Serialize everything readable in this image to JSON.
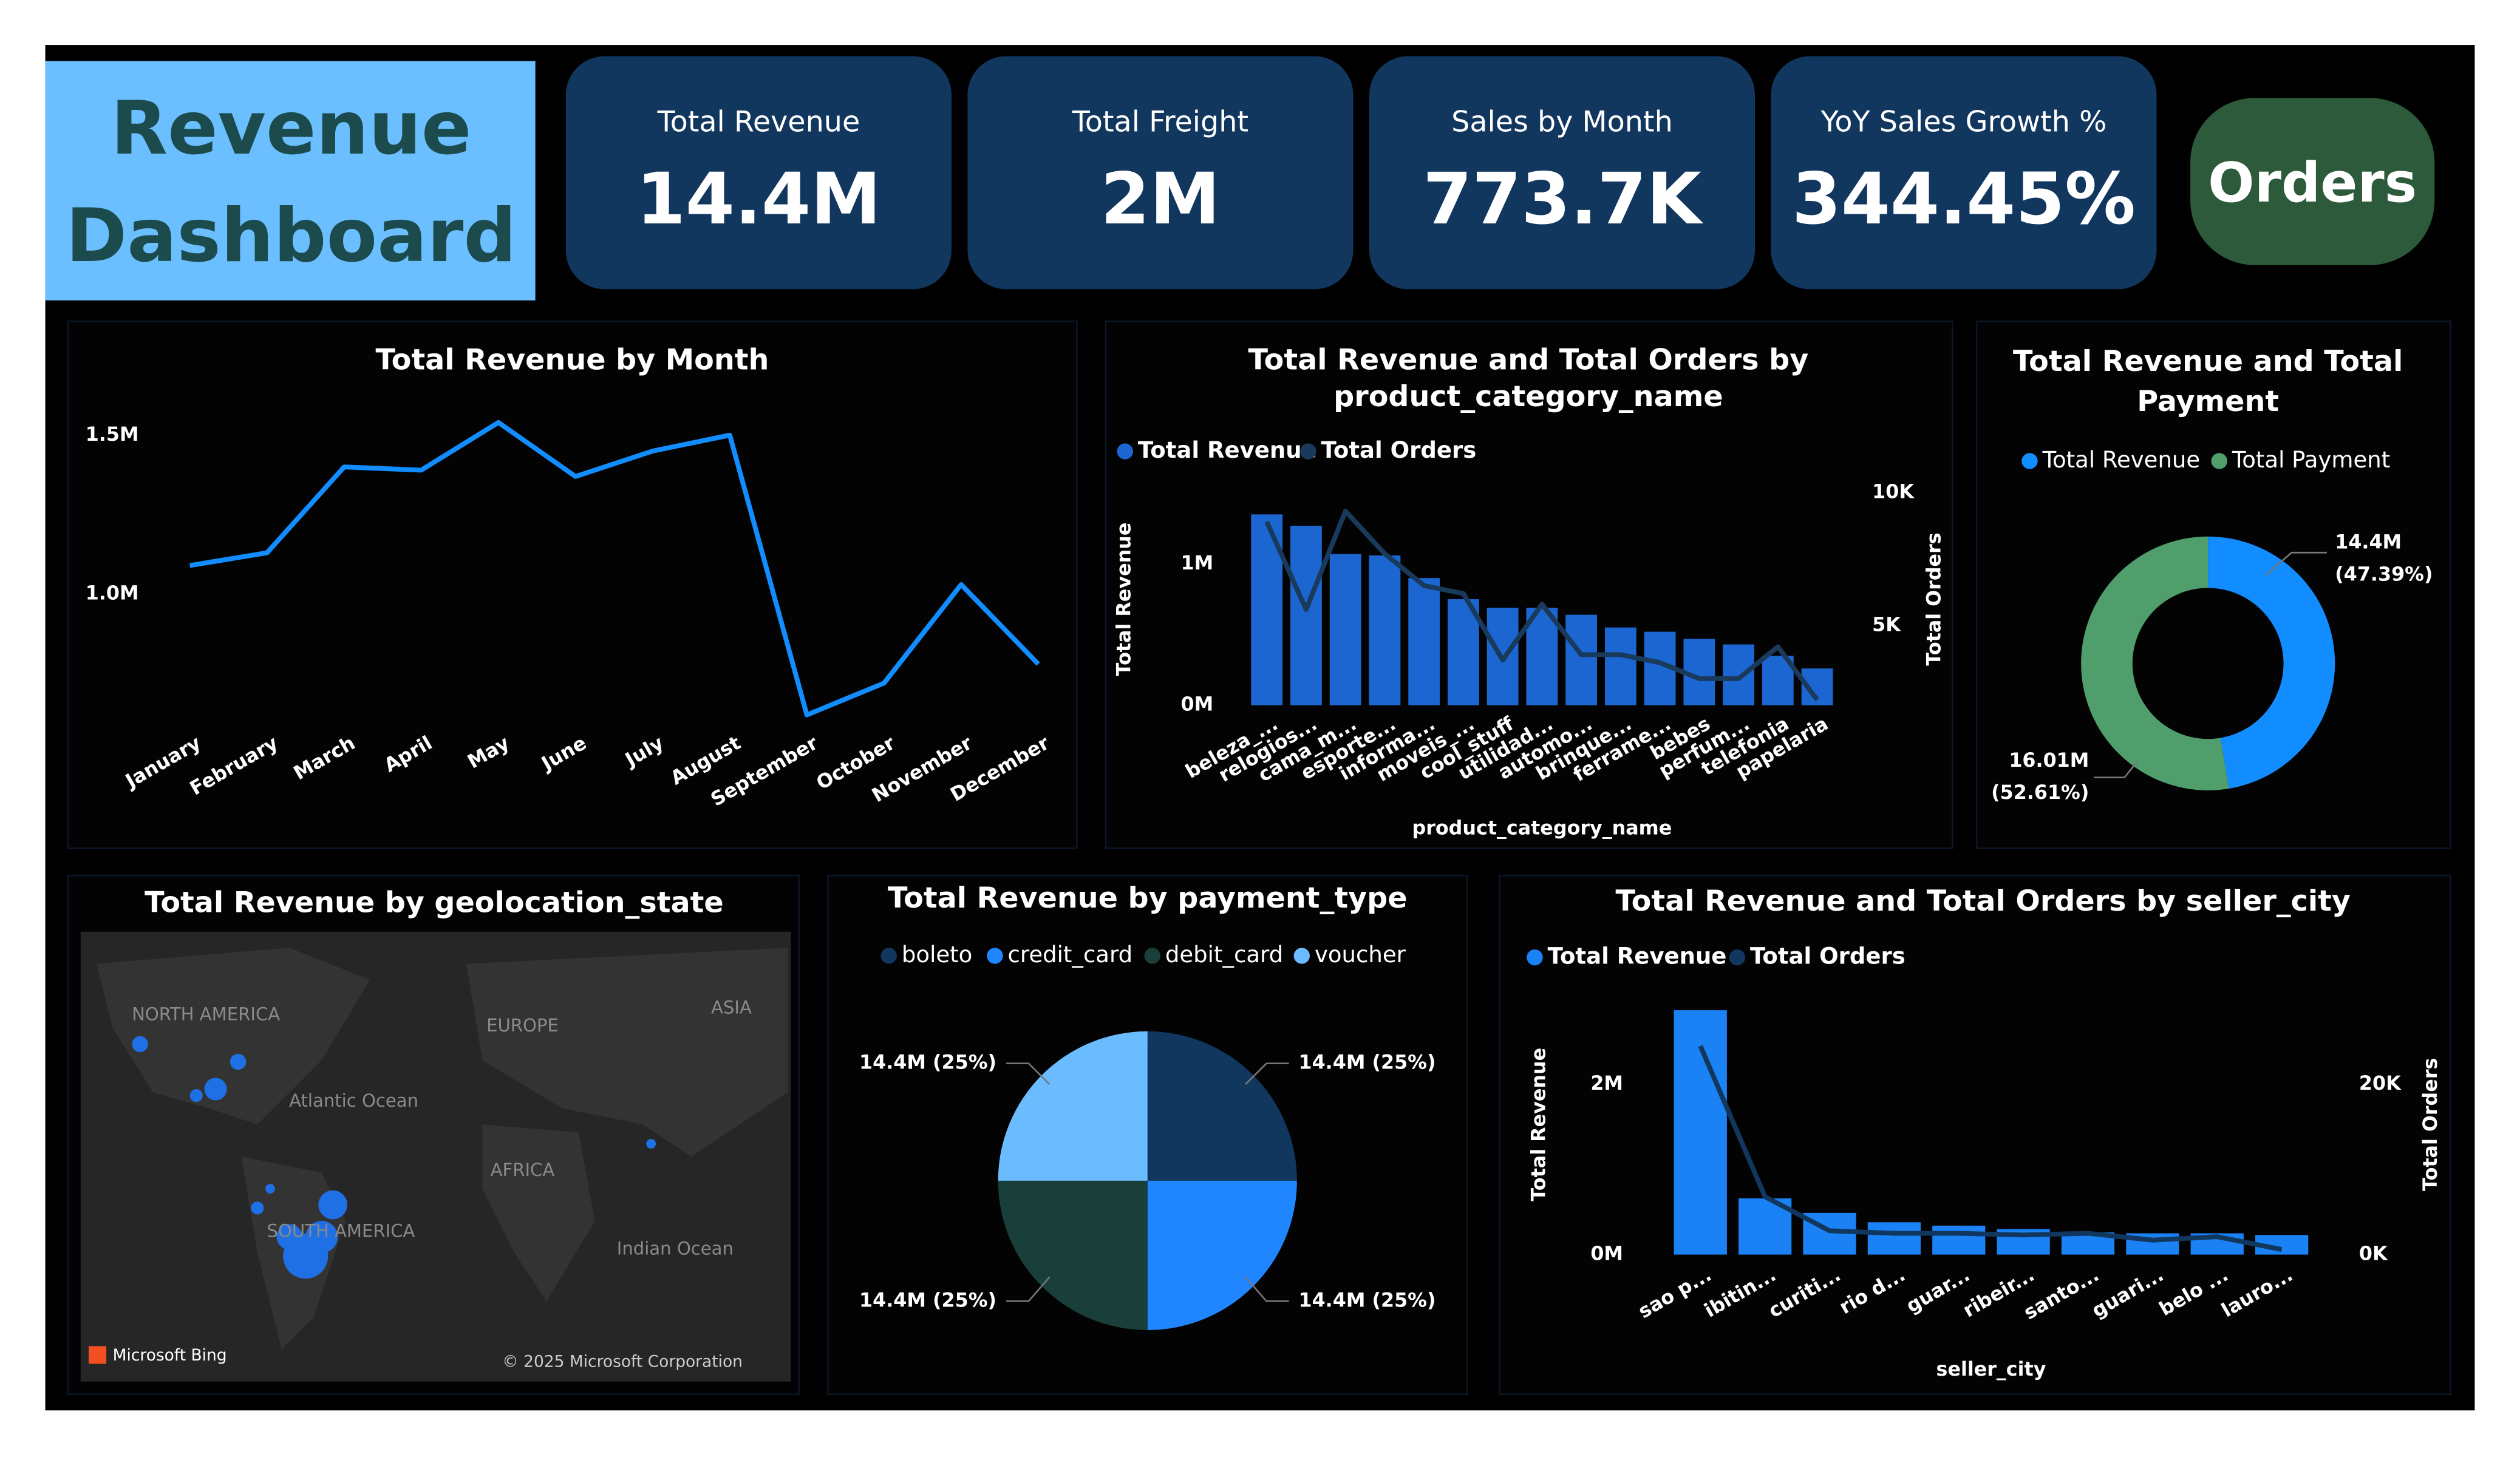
{
  "header": {
    "title": [
      "Revenue",
      "Dashboard"
    ]
  },
  "kpis": [
    {
      "label": "Total Revenue",
      "value": "14.4M"
    },
    {
      "label": "Total Freight",
      "value": "2M"
    },
    {
      "label": "Sales by Month",
      "value": "773.7K"
    },
    {
      "label": "YoY Sales Growth %",
      "value": "344.45%"
    }
  ],
  "button": "Orders",
  "map": {
    "title": "Total Revenue by geolocation_state",
    "labels": [
      "NORTH AMERICA",
      "EUROPE",
      "ASIA",
      "Atlantic Ocean",
      "AFRICA",
      "SOUTH AMERICA",
      "Indian Ocean",
      "Microsoft Bing",
      "© 2025 Microsoft Corporation"
    ]
  },
  "chart_data": [
    {
      "type": "line",
      "title": [
        "Total Revenue by Month"
      ],
      "categories": [
        "January",
        "February",
        "March",
        "April",
        "May",
        "June",
        "July",
        "August",
        "September",
        "October",
        "November",
        "December"
      ],
      "values": [
        1090000,
        1130000,
        1400000,
        1390000,
        1540000,
        1370000,
        1450000,
        1500000,
        620000,
        720000,
        1030000,
        780000
      ],
      "color": "#118dff",
      "ylim": [
        600000,
        1550000
      ],
      "yticks": [
        {
          "value": 1000000,
          "label": "1.0M"
        },
        {
          "value": 1500000,
          "label": "1.5M"
        }
      ],
      "grid": false
    },
    {
      "type": "bar_line",
      "title": [
        "Total Revenue and Total Orders by",
        "product_category_name"
      ],
      "categories": [
        "beleza_...",
        "relogios...",
        "cama_m...",
        "esporte...",
        "informa...",
        "moveis_...",
        "cool_stuff",
        "utilidad...",
        "automo...",
        "brinque...",
        "ferrame...",
        "bebes",
        "perfum...",
        "telefonia",
        "papelaria"
      ],
      "series": [
        {
          "name": "Total Revenue",
          "color": "#1b66d1",
          "values": [
            1350000,
            1270000,
            1070000,
            1060000,
            900000,
            750000,
            690000,
            690000,
            640000,
            550000,
            520000,
            470000,
            430000,
            350000,
            260000
          ]
        },
        {
          "name": "Total Orders",
          "color": "#1a3a5c",
          "axis": "y2",
          "values": [
            8900,
            5600,
            9300,
            7700,
            6500,
            6200,
            3700,
            5800,
            3900,
            3900,
            3600,
            3000,
            3000,
            4200,
            2200
          ]
        }
      ],
      "x_label": "product_category_name",
      "y_label": "Total Revenue",
      "y2_label": "Total Orders",
      "ylim": [
        0,
        1580000
      ],
      "yticks": [
        {
          "value": 0,
          "label": "0M"
        },
        {
          "value": 1000000,
          "label": "1M"
        }
      ],
      "y2lim": [
        2000,
        10400
      ],
      "y2ticks": [
        {
          "value": 5000,
          "label": "5K"
        },
        {
          "value": 10000,
          "label": "10K"
        }
      ]
    },
    {
      "type": "donut",
      "title": [
        "Total Revenue and Total",
        "Payment"
      ],
      "categories": [
        "Total Revenue",
        "Total Payment"
      ],
      "values": [
        14400000,
        16010000
      ],
      "value_labels": [
        "14.4M",
        "16.01M"
      ],
      "percents": [
        47.39,
        52.61
      ],
      "percent_labels": [
        "(47.39%)",
        "(52.61%)"
      ],
      "colors": [
        "#118dff",
        "#4f9e6b"
      ]
    },
    {
      "type": "pie",
      "title": [
        "Total Revenue by payment_type"
      ],
      "categories": [
        "boleto",
        "credit_card",
        "debit_card",
        "voucher"
      ],
      "values": [
        14400000,
        14400000,
        14400000,
        14400000
      ],
      "value_labels": [
        "14.4M (25%)",
        "14.4M (25%)",
        "14.4M (25%)",
        "14.4M (25%)"
      ],
      "colors": [
        "#12375f",
        "#1f86ff",
        "#1a3f3a",
        "#6bbcff"
      ]
    },
    {
      "type": "bar_line",
      "title": [
        "Total Revenue and Total Orders by seller_city"
      ],
      "categories": [
        "sao p...",
        "ibitin...",
        "curiti...",
        "rio d...",
        "guar...",
        "ribeir...",
        "santo...",
        "guari...",
        "belo ...",
        "lauro..."
      ],
      "series": [
        {
          "name": "Total Revenue",
          "color": "#1a82f5",
          "values": [
            2870000,
            660000,
            490000,
            380000,
            340000,
            300000,
            260000,
            250000,
            250000,
            230000
          ]
        },
        {
          "name": "Total Orders",
          "color": "#12375f",
          "axis": "y2",
          "values": [
            24500,
            6800,
            2800,
            2500,
            2500,
            2300,
            2500,
            1700,
            2100,
            600
          ]
        }
      ],
      "x_label": "seller_city",
      "y_label": "Total Revenue",
      "y2_label": "Total Orders",
      "ylim": [
        0,
        3000000
      ],
      "yticks": [
        {
          "value": 0,
          "label": "0M"
        },
        {
          "value": 2000000,
          "label": "2M"
        }
      ],
      "y2lim": [
        0,
        30000
      ],
      "y2ticks": [
        {
          "value": 0,
          "label": "0K"
        },
        {
          "value": 20000,
          "label": "20K"
        }
      ]
    }
  ]
}
